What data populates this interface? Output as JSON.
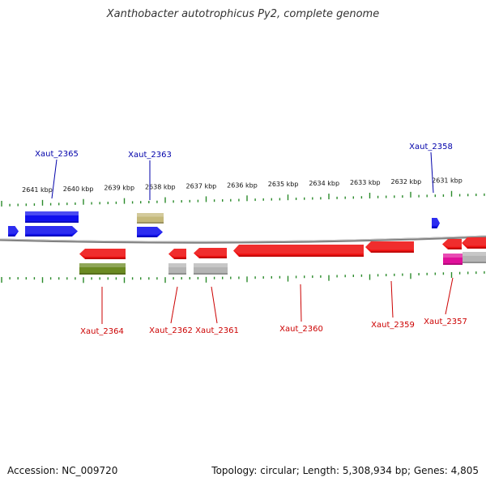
{
  "title": "Xanthobacter autotrophicus Py2, complete genome",
  "footer": {
    "accession_label": "Accession:",
    "accession": "NC_009720",
    "topology_label": "Topology:",
    "topology": "circular",
    "length_label": "Length:",
    "length": "5,308,934 bp",
    "genes_label": "Genes:",
    "genes": "4,805"
  },
  "colors": {
    "forward_label": "#0000aa",
    "reverse_label": "#cc0000",
    "tick": "#2a8a2a",
    "backbone": "#808080",
    "forward_gene": "#1010ee",
    "reverse_gene": "#ee1010",
    "pseudo_olive": "#6b8a22",
    "pseudo_tan": "#c4b87a",
    "pseudo_gray": "#b4b4b4",
    "rna_magenta": "#e0109a"
  },
  "chart_data": {
    "type": "genome_map",
    "scale_unit": "kbp",
    "scale_ticks": [
      {
        "kbp": 2641,
        "label": "2641 kbp"
      },
      {
        "kbp": 2640,
        "label": "2640 kbp"
      },
      {
        "kbp": 2639,
        "label": "2639 kbp"
      },
      {
        "kbp": 2638,
        "label": "2638 kbp"
      },
      {
        "kbp": 2637,
        "label": "2637 kbp"
      },
      {
        "kbp": 2636,
        "label": "2636 kbp"
      },
      {
        "kbp": 2635,
        "label": "2635 kbp"
      },
      {
        "kbp": 2634,
        "label": "2634 kbp"
      },
      {
        "kbp": 2633,
        "label": "2633 kbp"
      },
      {
        "kbp": 2632,
        "label": "2632 kbp"
      },
      {
        "kbp": 2631,
        "label": "2631 kbp"
      }
    ],
    "gene_labels": [
      {
        "name": "Xaut_2365",
        "strand": "forward"
      },
      {
        "name": "Xaut_2363",
        "strand": "forward"
      },
      {
        "name": "Xaut_2358",
        "strand": "forward"
      },
      {
        "name": "Xaut_2364",
        "strand": "reverse"
      },
      {
        "name": "Xaut_2362",
        "strand": "reverse"
      },
      {
        "name": "Xaut_2361",
        "strand": "reverse"
      },
      {
        "name": "Xaut_2360",
        "strand": "reverse"
      },
      {
        "name": "Xaut_2359",
        "strand": "reverse"
      },
      {
        "name": "Xaut_2357",
        "strand": "reverse"
      }
    ]
  }
}
